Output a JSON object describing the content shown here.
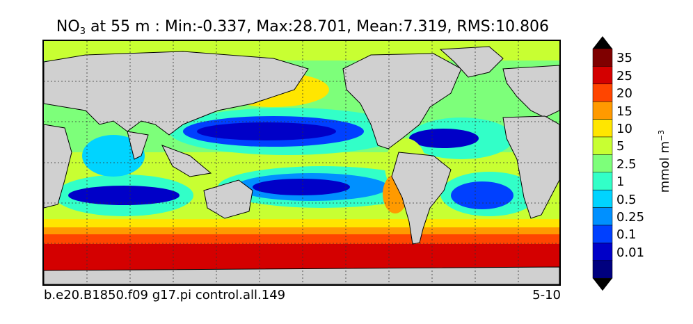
{
  "title": {
    "variable": "NO",
    "subscript": "3",
    "rest": " at 55 m : Min:-0.337, Max:28.701, Mean:7.319, RMS:10.806"
  },
  "footer": {
    "case": "b.e20.B1850.f09 g17.pi control.all.149",
    "period": "5-10"
  },
  "colorbar": {
    "units_main": "mmol m",
    "units_exp": "−3",
    "levels": [
      "35",
      "25",
      "20",
      "15",
      "10",
      "5",
      "2.5",
      "1",
      "0.5",
      "0.25",
      "0.1",
      "0.01"
    ],
    "colors_top_to_bottom": [
      "#7f0000",
      "#d40000",
      "#ff4500",
      "#ff9a00",
      "#ffe600",
      "#c8ff32",
      "#7dff7a",
      "#32ffc8",
      "#00d4ff",
      "#0090ff",
      "#0040ff",
      "#0000c8",
      "#00007f"
    ],
    "extend": "both"
  },
  "map": {
    "land_color": "#d0d0d0",
    "grid": "dotted"
  }
}
